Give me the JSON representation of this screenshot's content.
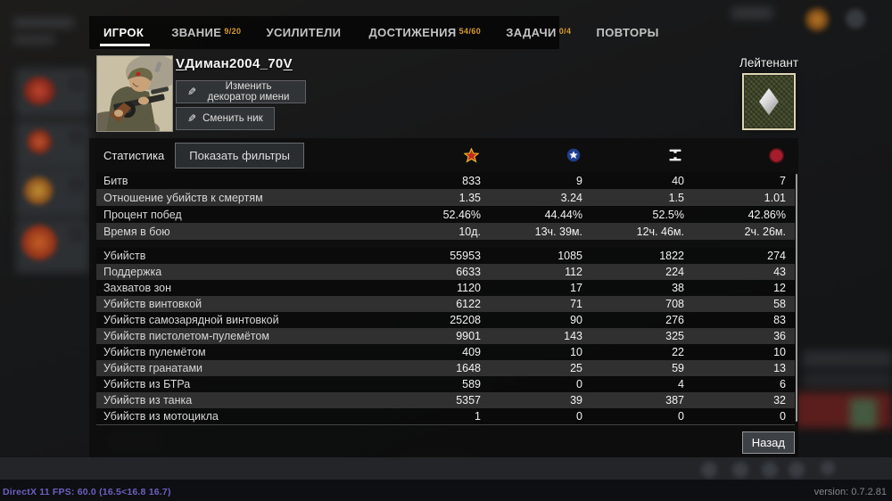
{
  "tabs": [
    {
      "label": "ИГРОК",
      "badge": "",
      "active": true
    },
    {
      "label": "ЗВАНИЕ",
      "badge": "9/20",
      "active": false
    },
    {
      "label": "УСИЛИТЕЛИ",
      "badge": "",
      "active": false
    },
    {
      "label": "ДОСТИЖЕНИЯ",
      "badge": "54/60",
      "active": false
    },
    {
      "label": "ЗАДАЧИ",
      "badge": "0/4",
      "active": false
    },
    {
      "label": "ПОВТОРЫ",
      "badge": "",
      "active": false
    }
  ],
  "player": {
    "name_prefix": "V",
    "name_core": "Диман2004_70",
    "name_suffix": "V",
    "decorator_button": "Изменить декоратор имени",
    "nick_button": "Сменить ник",
    "rank": "Лейтенант"
  },
  "stats": {
    "section_label": "Статистика",
    "filter_button": "Показать фильтры",
    "columns": [
      "ussr",
      "usa",
      "germany",
      "japan"
    ],
    "groups": [
      {
        "rows": [
          {
            "label": "Битв",
            "values": [
              "833",
              "9",
              "40",
              "7"
            ]
          },
          {
            "label": "Отношение убийств к смертям",
            "values": [
              "1.35",
              "3.24",
              "1.5",
              "1.01"
            ]
          },
          {
            "label": "Процент побед",
            "values": [
              "52.46%",
              "44.44%",
              "52.5%",
              "42.86%"
            ]
          },
          {
            "label": "Время в бою",
            "values": [
              "10д.",
              "13ч. 39м.",
              "12ч. 46м.",
              "2ч. 26м."
            ]
          }
        ]
      },
      {
        "rows": [
          {
            "label": "Убийств",
            "values": [
              "55953",
              "1085",
              "1822",
              "274"
            ]
          },
          {
            "label": "Поддержка",
            "values": [
              "6633",
              "112",
              "224",
              "43"
            ]
          },
          {
            "label": "Захватов зон",
            "values": [
              "1120",
              "17",
              "38",
              "12"
            ]
          },
          {
            "label": "Убийств винтовкой",
            "values": [
              "6122",
              "71",
              "708",
              "58"
            ]
          },
          {
            "label": "Убийств самозарядной винтовкой",
            "values": [
              "25208",
              "90",
              "276",
              "83"
            ]
          },
          {
            "label": "Убийств пистолетом-пулемётом",
            "values": [
              "9901",
              "143",
              "325",
              "36"
            ]
          },
          {
            "label": "Убийств пулемётом",
            "values": [
              "409",
              "10",
              "22",
              "10"
            ]
          },
          {
            "label": "Убийств гранатами",
            "values": [
              "1648",
              "25",
              "59",
              "13"
            ]
          },
          {
            "label": "Убийств из БТРа",
            "values": [
              "589",
              "0",
              "4",
              "6"
            ]
          },
          {
            "label": "Убийств из танка",
            "values": [
              "5357",
              "39",
              "387",
              "32"
            ]
          },
          {
            "label": "Убийств из мотоцикла",
            "values": [
              "1",
              "0",
              "0",
              "0"
            ]
          }
        ]
      }
    ]
  },
  "back_button": "Назад",
  "footer": {
    "fps_text": "DirectX 11 FPS: 60.0 (16.5<16.8 16.7)",
    "version_text": "version: 0.7.2.81"
  },
  "colors": {
    "badge_orange": "#d99a2b",
    "ussr_red": "#c22a1e",
    "ussr_gold": "#e8b42a",
    "usa_blue": "#1e3f8f",
    "germany_white": "#f0f0f0",
    "japan_red": "#a31e2a",
    "rank_green": "#4d5433"
  }
}
